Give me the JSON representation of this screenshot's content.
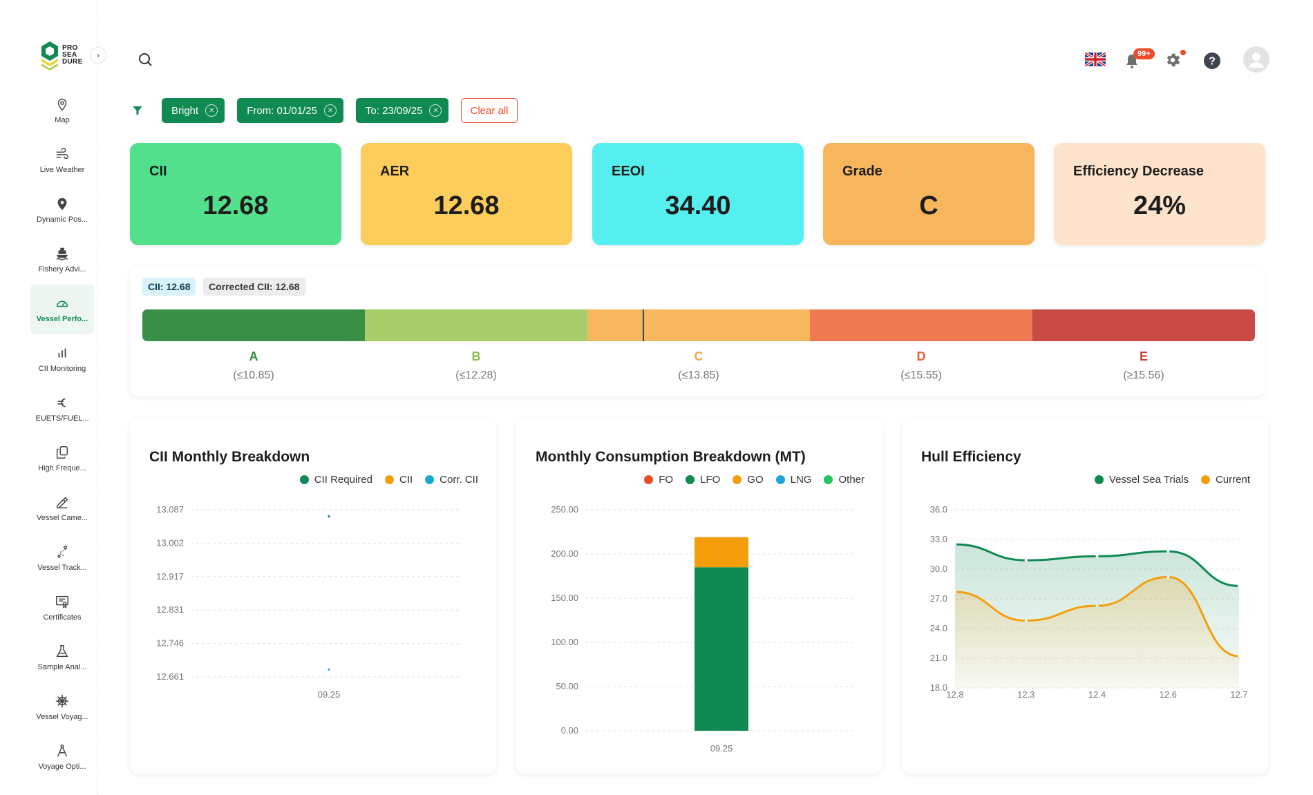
{
  "logo": {
    "line1": "PRO",
    "line2": "SEA",
    "line3": "DURE"
  },
  "sidebar": {
    "items": [
      {
        "label": "Map",
        "icon": "map-pin-icon"
      },
      {
        "label": "Live Weather",
        "icon": "wind-icon"
      },
      {
        "label": "Dynamic Pos...",
        "icon": "location-icon"
      },
      {
        "label": "Fishery Advi...",
        "icon": "ship-icon"
      },
      {
        "label": "Vessel Perfo...",
        "icon": "gauge-icon",
        "active": true
      },
      {
        "label": "CII Monitoring",
        "icon": "bar-chart-icon"
      },
      {
        "label": "EUETS/FUEL...",
        "icon": "euro-icon"
      },
      {
        "label": "High Freque...",
        "icon": "copy-icon"
      },
      {
        "label": "Vessel Came...",
        "icon": "camera-icon"
      },
      {
        "label": "Vessel Track...",
        "icon": "route-icon"
      },
      {
        "label": "Certificates",
        "icon": "certificate-icon"
      },
      {
        "label": "Sample Anal...",
        "icon": "flask-icon"
      },
      {
        "label": "Vessel Voyag...",
        "icon": "helm-icon"
      },
      {
        "label": "Voyage Opti...",
        "icon": "compass-icon"
      }
    ]
  },
  "header": {
    "notifications_badge": "99+"
  },
  "filters": {
    "chips": [
      "Bright",
      "From: 01/01/25",
      "To: 23/09/25"
    ],
    "clear_label": "Clear all"
  },
  "kpis": [
    {
      "title": "CII",
      "value": "12.68",
      "color": "#52e08c"
    },
    {
      "title": "AER",
      "value": "12.68",
      "color": "#fdcd5c"
    },
    {
      "title": "EEOI",
      "value": "34.40",
      "color": "#56eff0"
    },
    {
      "title": "Grade",
      "value": "C",
      "color": "#f7b55c"
    },
    {
      "title": "Efficiency Decrease",
      "value": "24%",
      "color": "#fde3cb"
    }
  ],
  "grade_panel": {
    "cii_tag": "CII: 12.68",
    "corrected_tag": "Corrected CII: 12.68",
    "grades": [
      {
        "letter": "A",
        "range": "(≤10.85)",
        "color": "#3a8f46",
        "text_color": "#2f8c3a"
      },
      {
        "letter": "B",
        "range": "(≤12.28)",
        "color": "#a8cd6a",
        "text_color": "#86bd4a"
      },
      {
        "letter": "C",
        "range": "(≤13.85)",
        "color": "#f6b75e",
        "text_color": "#f3a642"
      },
      {
        "letter": "D",
        "range": "(≤15.55)",
        "color": "#f07a52",
        "text_color": "#e8603b"
      },
      {
        "letter": "E",
        "range": "(≥15.56)",
        "color": "#c84a44",
        "text_color": "#c43e38"
      }
    ],
    "marker_value": 12.68
  },
  "charts": [
    {
      "title": "CII Monthly Breakdown",
      "legend": [
        {
          "name": "CII Required",
          "color": "#0f8a52"
        },
        {
          "name": "CII",
          "color": "#f59e0b"
        },
        {
          "name": "Corr. CII",
          "color": "#1aa7d6"
        }
      ]
    },
    {
      "title": "Monthly Consumption Breakdown (MT)",
      "legend": [
        {
          "name": "FO",
          "color": "#ef4b2a"
        },
        {
          "name": "LFO",
          "color": "#0f8a52"
        },
        {
          "name": "GO",
          "color": "#f59e0b"
        },
        {
          "name": "LNG",
          "color": "#1aa7d6"
        },
        {
          "name": "Other",
          "color": "#22c55e"
        }
      ]
    },
    {
      "title": "Hull Efficiency",
      "legend": [
        {
          "name": "Vessel Sea Trials",
          "color": "#0f8a52"
        },
        {
          "name": "Current",
          "color": "#f59e0b"
        }
      ]
    }
  ],
  "chart_data": [
    {
      "type": "scatter",
      "title": "CII Monthly Breakdown",
      "categories": [
        "09.25"
      ],
      "yticks": [
        "13.087",
        "13.002",
        "12.917",
        "12.831",
        "12.746",
        "12.661"
      ],
      "ylim": [
        12.661,
        13.087
      ],
      "series": [
        {
          "name": "CII Required",
          "values": [
            13.07
          ]
        },
        {
          "name": "Corr. CII",
          "values": [
            12.68
          ]
        }
      ]
    },
    {
      "type": "bar",
      "title": "Monthly Consumption Breakdown (MT)",
      "categories": [
        "09.25"
      ],
      "yticks": [
        "250.00",
        "200.00",
        "150.00",
        "100.00",
        "50.00",
        "0.00"
      ],
      "ylim": [
        0,
        250
      ],
      "stacked": true,
      "series": [
        {
          "name": "LFO",
          "values": [
            185
          ]
        },
        {
          "name": "GO",
          "values": [
            34
          ]
        }
      ]
    },
    {
      "type": "area",
      "title": "Hull Efficiency",
      "x": [
        "12.8",
        "12.3",
        "12.4",
        "12.6",
        "12.7"
      ],
      "yticks": [
        "36.0",
        "33.0",
        "30.0",
        "27.0",
        "24.0",
        "21.0",
        "18.0"
      ],
      "ylim": [
        18,
        36
      ],
      "series": [
        {
          "name": "Vessel Sea Trials",
          "values": [
            32.5,
            30.9,
            31.3,
            31.8,
            28.3
          ]
        },
        {
          "name": "Current",
          "values": [
            27.7,
            24.8,
            26.3,
            29.2,
            21.2
          ]
        }
      ]
    }
  ]
}
